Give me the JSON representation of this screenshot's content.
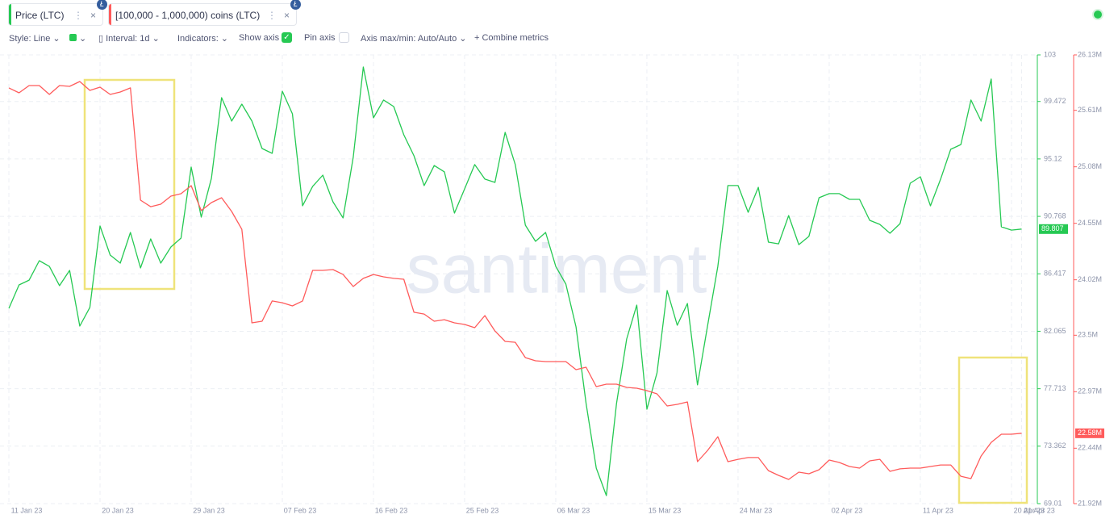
{
  "ui": {
    "style": "Style: Line",
    "interval": "Interval: 1d",
    "indicators": "Indicators:",
    "show_axis": "Show axis",
    "pin_axis": "Pin axis",
    "axis_minmax": "Axis max/min: Auto/Auto",
    "combine": "Combine metrics",
    "watermark": "santiment"
  },
  "chart_data": {
    "type": "line",
    "categories": [
      "11 Jan 23",
      null,
      null,
      null,
      null,
      null,
      null,
      null,
      null,
      "20 Jan 23",
      null,
      null,
      null,
      null,
      null,
      null,
      null,
      null,
      "29 Jan 23",
      null,
      null,
      null,
      null,
      null,
      null,
      null,
      null,
      "07 Feb 23",
      null,
      null,
      null,
      null,
      null,
      null,
      null,
      null,
      "16 Feb 23",
      null,
      null,
      null,
      null,
      null,
      null,
      null,
      null,
      "25 Feb 23",
      null,
      null,
      null,
      null,
      null,
      null,
      null,
      null,
      "06 Mar 23",
      null,
      null,
      null,
      null,
      null,
      null,
      null,
      null,
      "15 Mar 23",
      null,
      null,
      null,
      null,
      null,
      null,
      null,
      null,
      "24 Mar 23",
      null,
      null,
      null,
      null,
      null,
      null,
      null,
      null,
      "02 Apr 23",
      null,
      null,
      null,
      null,
      null,
      null,
      null,
      null,
      "11 Apr 23",
      null,
      null,
      null,
      null,
      null,
      null,
      null,
      null,
      "20 Apr 23",
      "21 Apr 23"
    ],
    "series": [
      {
        "name": "Price (LTC)",
        "color": "#26c953",
        "axis": "y",
        "values": [
          83.8,
          85.58,
          85.94,
          87.41,
          86.98,
          85.52,
          86.68,
          82.46,
          83.87,
          90.04,
          87.84,
          87.23,
          89.55,
          86.86,
          89.06,
          87.23,
          88.45,
          89.12,
          94.5,
          90.71,
          93.65,
          99.76,
          97.99,
          99.27,
          97.99,
          95.91,
          95.54,
          100.25,
          98.54,
          91.57,
          93.04,
          93.89,
          91.87,
          90.65,
          95.24,
          102.08,
          98.23,
          99.58,
          99.09,
          96.95,
          95.36,
          93.1,
          94.62,
          94.14,
          91.02,
          92.85,
          94.69,
          93.59,
          93.34,
          97.13,
          94.69,
          90.1,
          88.88,
          89.55,
          86.98,
          85.64,
          82.4,
          76.59,
          71.7,
          69.62,
          76.59,
          81.48,
          84.05,
          76.16,
          78.91,
          85.15,
          82.52,
          84.17,
          78.0,
          82.52,
          86.98,
          93.1,
          93.1,
          91.08,
          92.97,
          88.82,
          88.69,
          90.83,
          88.63,
          89.25,
          92.18,
          92.49,
          92.49,
          92.06,
          92.06,
          90.47,
          90.16,
          89.49,
          90.22,
          93.28,
          93.77,
          91.57,
          93.59,
          95.85,
          96.21,
          99.58,
          97.99,
          101.17,
          89.98,
          89.73,
          89.807
        ]
      },
      {
        "name": "[100,000 - 1,000,000) coins (LTC)",
        "color": "#ff5b5b",
        "axis": "y2",
        "values": [
          25.82,
          25.774,
          25.842,
          25.842,
          25.759,
          25.842,
          25.835,
          25.88,
          25.797,
          25.827,
          25.759,
          25.782,
          25.82,
          24.767,
          24.706,
          24.729,
          24.805,
          24.828,
          24.903,
          24.669,
          24.744,
          24.79,
          24.661,
          24.494,
          23.616,
          23.631,
          23.821,
          23.805,
          23.775,
          23.821,
          24.108,
          24.108,
          24.116,
          24.07,
          23.957,
          24.033,
          24.07,
          24.048,
          24.033,
          24.025,
          23.715,
          23.699,
          23.631,
          23.646,
          23.616,
          23.601,
          23.571,
          23.684,
          23.54,
          23.442,
          23.434,
          23.29,
          23.26,
          23.253,
          23.253,
          23.253,
          23.177,
          23.2,
          23.018,
          23.041,
          23.041,
          23.01,
          23.003,
          22.98,
          22.95,
          22.836,
          22.851,
          22.874,
          22.314,
          22.42,
          22.548,
          22.314,
          22.336,
          22.352,
          22.352,
          22.23,
          22.185,
          22.147,
          22.215,
          22.2,
          22.238,
          22.329,
          22.306,
          22.268,
          22.253,
          22.321,
          22.336,
          22.223,
          22.246,
          22.253,
          22.253,
          22.268,
          22.283,
          22.283,
          22.177,
          22.155,
          22.367,
          22.495,
          22.571,
          22.571,
          22.58
        ]
      }
    ],
    "ylim": [
      69.01,
      103
    ],
    "yticks": [
      103,
      99.472,
      95.12,
      90.768,
      86.417,
      82.065,
      77.713,
      73.362,
      69.01
    ],
    "y2lim": [
      21.92,
      26.13
    ],
    "y2ticks": [
      {
        "value": 26.13,
        "label": "26.13M"
      },
      {
        "value": 25.61,
        "label": "25.61M"
      },
      {
        "value": 25.08,
        "label": "25.08M"
      },
      {
        "value": 24.55,
        "label": "24.55M"
      },
      {
        "value": 24.02,
        "label": "24.02M"
      },
      {
        "value": 23.5,
        "label": "23.5M"
      },
      {
        "value": 22.97,
        "label": "22.97M"
      },
      {
        "value": 22.44,
        "label": "22.44M"
      },
      {
        "value": 21.92,
        "label": "21.92M"
      }
    ],
    "grid": true,
    "annotations": [
      {
        "text": "89.807",
        "value": 89.807,
        "axis": "y"
      },
      {
        "text": "22.58M",
        "value": 22.58,
        "axis": "y2"
      }
    ]
  }
}
